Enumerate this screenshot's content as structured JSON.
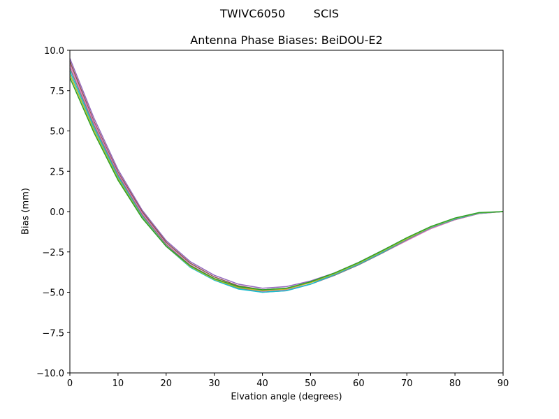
{
  "figure": {
    "suptitle": "TWIVC6050        SCIS",
    "title": "Antenna Phase Biases: BeiDOU-E2",
    "xlabel": "Elvation angle (degrees)",
    "ylabel": "Bias (mm)"
  },
  "chart_data": {
    "type": "line",
    "title": "Antenna Phase Biases: BeiDOU-E2",
    "suptitle": "TWIVC6050        SCIS",
    "xlabel": "Elvation angle (degrees)",
    "ylabel": "Bias (mm)",
    "xlim": [
      0,
      90
    ],
    "ylim": [
      -10,
      10
    ],
    "xticks": [
      0,
      10,
      20,
      30,
      40,
      50,
      60,
      70,
      80,
      90
    ],
    "yticks": [
      -10.0,
      -7.5,
      -5.0,
      -2.5,
      0.0,
      2.5,
      5.0,
      7.5,
      10.0
    ],
    "ytick_labels": [
      "−10.0",
      "−7.5",
      "−5.0",
      "−2.5",
      "0.0",
      "2.5",
      "5.0",
      "7.5",
      "10.0"
    ],
    "grid": false,
    "legend": "none",
    "x": [
      0,
      5,
      10,
      15,
      20,
      25,
      30,
      35,
      40,
      45,
      50,
      55,
      60,
      65,
      70,
      75,
      80,
      85,
      90
    ],
    "series": [
      {
        "name": "azimuth-1",
        "color": "#9467bd",
        "values": [
          9.5,
          5.8,
          2.6,
          0.1,
          -1.8,
          -3.1,
          -3.95,
          -4.5,
          -4.75,
          -4.65,
          -4.3,
          -3.8,
          -3.15,
          -2.4,
          -1.65,
          -0.95,
          -0.45,
          -0.1,
          0.0
        ]
      },
      {
        "name": "azimuth-2",
        "color": "#8c564b",
        "values": [
          9.3,
          5.6,
          2.45,
          0.0,
          -1.9,
          -3.2,
          -4.05,
          -4.6,
          -4.85,
          -4.75,
          -4.4,
          -3.9,
          -3.25,
          -2.5,
          -1.75,
          -1.05,
          -0.5,
          -0.12,
          0.0
        ]
      },
      {
        "name": "azimuth-3",
        "color": "#e377c2",
        "values": [
          9.1,
          5.5,
          2.35,
          -0.1,
          -2.0,
          -3.3,
          -4.15,
          -4.7,
          -4.95,
          -4.85,
          -4.5,
          -3.95,
          -3.3,
          -2.55,
          -1.8,
          -1.05,
          -0.5,
          -0.12,
          0.0
        ]
      },
      {
        "name": "azimuth-4",
        "color": "#7f7f7f",
        "values": [
          8.9,
          5.35,
          2.25,
          -0.2,
          -2.05,
          -3.35,
          -4.2,
          -4.75,
          -5.0,
          -4.9,
          -4.5,
          -3.95,
          -3.3,
          -2.55,
          -1.75,
          -1.0,
          -0.48,
          -0.1,
          0.0
        ]
      },
      {
        "name": "azimuth-5",
        "color": "#17becf",
        "values": [
          8.7,
          5.2,
          2.15,
          -0.3,
          -2.15,
          -3.45,
          -4.25,
          -4.8,
          -5.0,
          -4.9,
          -4.5,
          -3.9,
          -3.25,
          -2.5,
          -1.7,
          -0.98,
          -0.45,
          -0.1,
          0.0
        ]
      },
      {
        "name": "azimuth-6",
        "color": "#bcbd22",
        "values": [
          8.5,
          5.05,
          2.05,
          -0.35,
          -2.15,
          -3.4,
          -4.2,
          -4.7,
          -4.9,
          -4.8,
          -4.4,
          -3.85,
          -3.2,
          -2.45,
          -1.68,
          -0.95,
          -0.42,
          -0.08,
          0.0
        ]
      },
      {
        "name": "azimuth-7",
        "color": "#2ca02c",
        "values": [
          8.3,
          4.9,
          1.95,
          -0.4,
          -2.15,
          -3.35,
          -4.15,
          -4.65,
          -4.85,
          -4.75,
          -4.35,
          -3.8,
          -3.15,
          -2.4,
          -1.62,
          -0.92,
          -0.4,
          -0.06,
          0.0
        ]
      }
    ]
  }
}
